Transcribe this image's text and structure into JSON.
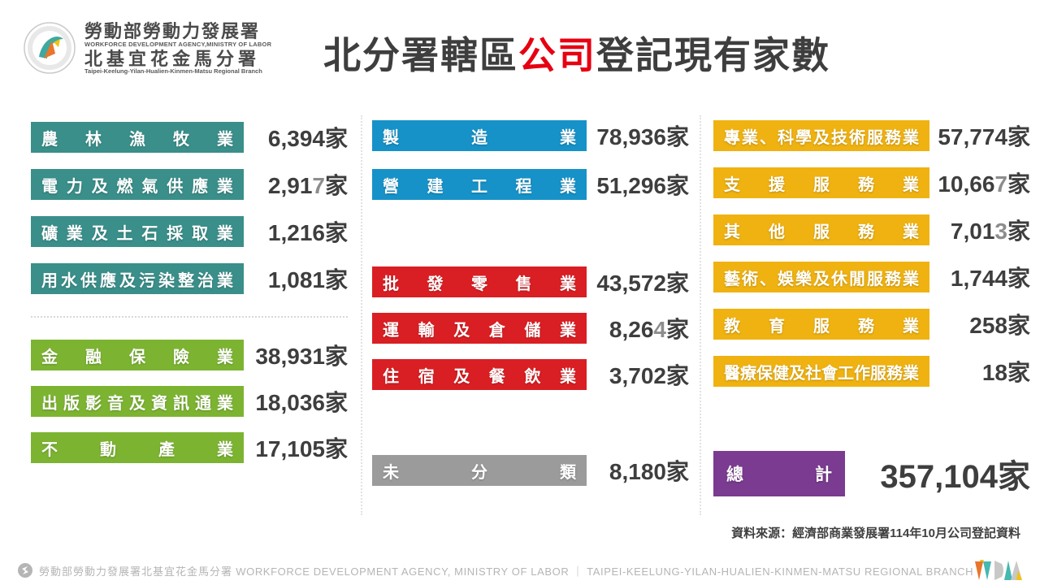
{
  "header": {
    "logo": {
      "org_zh": "勞動部勞動力發展署",
      "org_en": "WORKFORCE DEVELOPMENT AGENCY,MINISTRY OF LABOR",
      "branch_zh": "北基宜花金馬分署",
      "branch_en": "Taipei-Keelung-Yilan-Hualien-Kinmen-Matsu Regional Branch"
    },
    "title": {
      "prefix": "北分署轄區",
      "highlight": "公司",
      "suffix": "登記現有家數"
    },
    "highlight_color": "#e60012"
  },
  "columns": [
    {
      "groups": [
        {
          "name": "agriculture-and-utilities",
          "color": "#3a8f8a",
          "rows": [
            {
              "label": "農林漁牧業",
              "value_main": "6,394",
              "value_gray": "",
              "unit": "家"
            },
            {
              "label": "電力及燃氣供應業",
              "value_main": "2,91",
              "value_gray": "7",
              "unit": "家"
            },
            {
              "label": "礦業及土石採取業",
              "value_main": "1,216",
              "value_gray": "",
              "unit": "家"
            },
            {
              "label": "用水供應及污染整治業",
              "value_main": "1,081",
              "value_gray": "",
              "unit": "家"
            }
          ]
        },
        {
          "name": "finance-media-realestate",
          "color": "#7cb432",
          "rows": [
            {
              "label": "金融保險業",
              "value_main": "38,931",
              "value_gray": "",
              "unit": "家"
            },
            {
              "label": "出版影音及資訊通業",
              "value_main": "18,036",
              "value_gray": "",
              "unit": "家"
            },
            {
              "label": "不動產業",
              "value_main": "17,105",
              "value_gray": "",
              "unit": "家"
            }
          ]
        }
      ]
    },
    {
      "groups": [
        {
          "name": "manufacturing-construction",
          "color": "#1692c8",
          "rows": [
            {
              "label": "製造業",
              "value_main": "78,936",
              "value_gray": "",
              "unit": "家"
            },
            {
              "label": "營建工程業",
              "value_main": "51,296",
              "value_gray": "",
              "unit": "家"
            }
          ]
        },
        {
          "name": "wholesale-transport-hospitality",
          "color": "#d91f24",
          "rows": [
            {
              "label": "批發零售業",
              "value_main": "43,572",
              "value_gray": "",
              "unit": "家"
            },
            {
              "label": "運輸及倉儲業",
              "value_main": "8,26",
              "value_gray": "4",
              "unit": "家"
            },
            {
              "label": "住宿及餐飲業",
              "value_main": "3,702",
              "value_gray": "",
              "unit": "家"
            }
          ]
        },
        {
          "name": "unclassified",
          "color": "#9b9b9b",
          "rows": [
            {
              "label": "未分類",
              "value_main": "8,180",
              "value_gray": "",
              "unit": "家"
            }
          ]
        }
      ]
    },
    {
      "groups": [
        {
          "name": "service-industries",
          "color": "#efb211",
          "rows": [
            {
              "label": "專業、科學及技術服務業",
              "value_main": "57,774",
              "value_gray": "",
              "unit": "家"
            },
            {
              "label": "支援服務業",
              "value_main": "10,66",
              "value_gray": "7",
              "unit": "家"
            },
            {
              "label": "其他服務業",
              "value_main": "7,01",
              "value_gray": "3",
              "unit": "家"
            },
            {
              "label": "藝術、娛樂及休閒服務業",
              "value_main": "1,744",
              "value_gray": "",
              "unit": "家"
            },
            {
              "label": "教育服務業",
              "value_main": "258",
              "value_gray": "",
              "unit": "家"
            },
            {
              "label": "醫療保健及社會工作服務業",
              "value_main": "18",
              "value_gray": "",
              "unit": "家"
            }
          ]
        }
      ]
    }
  ],
  "total": {
    "label": "總計",
    "value": "357,104",
    "unit": "家",
    "color": "#7a3b90"
  },
  "source_note": "資料來源：經濟部商業發展署114年10月公司登記資料",
  "footer": {
    "zh": "勞動部勞動力發展署北基宜花金馬分署",
    "en1": "WORKFORCE DEVELOPMENT AGENCY, MINISTRY OF LABOR",
    "separator": "｜",
    "en2": "TAIPEI-KEELUNG-YILAN-HUALIEN-KINMEN-MATSU REGIONAL BRANCH"
  },
  "chart_data": {
    "type": "table",
    "title": "北分署轄區公司登記現有家數",
    "unit": "家",
    "categories": [
      "農林漁牧業",
      "電力及燃氣供應業",
      "礦業及土石採取業",
      "用水供應及污染整治業",
      "金融保險業",
      "出版影音及資訊通業",
      "不動產業",
      "製造業",
      "營建工程業",
      "批發零售業",
      "運輸及倉儲業",
      "住宿及餐飲業",
      "未分類",
      "專業、科學及技術服務業",
      "支援服務業",
      "其他服務業",
      "藝術、娛樂及休閒服務業",
      "教育服務業",
      "醫療保健及社會工作服務業"
    ],
    "values": [
      6394,
      2917,
      1216,
      1081,
      38931,
      18036,
      17105,
      78936,
      51296,
      43572,
      8264,
      3702,
      8180,
      57774,
      10667,
      7013,
      1744,
      258,
      18
    ],
    "total": 357104,
    "group_colors": {
      "teal": "#3a8f8a",
      "green": "#7cb432",
      "blue": "#1692c8",
      "red": "#d91f24",
      "gray": "#9b9b9b",
      "yellow": "#efb211",
      "purple": "#7a3b90"
    },
    "source": "資料來源：經濟部商業發展署114年10月公司登記資料"
  }
}
